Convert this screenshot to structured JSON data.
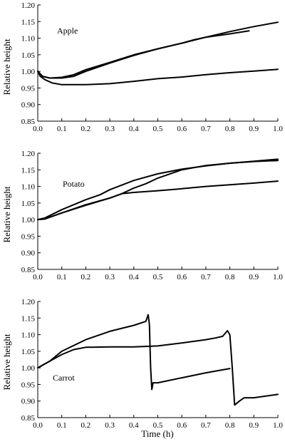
{
  "figure": {
    "xlabel": "Time (h)"
  },
  "chart_data": [
    {
      "type": "line",
      "panel_label": "Apple",
      "ylabel": "Relative height",
      "xlabel": "",
      "xlim": [
        0.0,
        1.0
      ],
      "ylim": [
        0.85,
        1.2
      ],
      "x_ticks": [
        "0.0",
        "0.1",
        "0.2",
        "0.3",
        "0.4",
        "0.5",
        "0.6",
        "0.7",
        "0.8",
        "0.9",
        "1.0"
      ],
      "y_ticks": [
        "0.85",
        "0.90",
        "0.95",
        "1.00",
        "1.05",
        "1.10",
        "1.15",
        "1.20"
      ],
      "grid": false,
      "series": [
        {
          "x": [
            0,
            0.02,
            0.05,
            0.1,
            0.15,
            0.2,
            0.3,
            0.4,
            0.5,
            0.6,
            0.7,
            0.8,
            0.9,
            1.0
          ],
          "y": [
            1.0,
            0.985,
            0.98,
            0.982,
            0.99,
            1.005,
            1.027,
            1.05,
            1.068,
            1.085,
            1.103,
            1.12,
            1.135,
            1.148
          ]
        },
        {
          "x": [
            0,
            0.02,
            0.05,
            0.1,
            0.15,
            0.2,
            0.3,
            0.4,
            0.5,
            0.6,
            0.65,
            0.7,
            0.8,
            0.88
          ],
          "y": [
            1.0,
            0.985,
            0.98,
            0.98,
            0.985,
            1.0,
            1.025,
            1.048,
            1.068,
            1.085,
            1.095,
            1.103,
            1.113,
            1.122
          ]
        },
        {
          "x": [
            0,
            0.01,
            0.03,
            0.06,
            0.1,
            0.15,
            0.2,
            0.3,
            0.4,
            0.5,
            0.6,
            0.7,
            0.8,
            0.9,
            1.0
          ],
          "y": [
            1.0,
            0.985,
            0.975,
            0.965,
            0.96,
            0.96,
            0.96,
            0.963,
            0.97,
            0.978,
            0.983,
            0.99,
            0.996,
            1.001,
            1.006
          ]
        }
      ]
    },
    {
      "type": "line",
      "panel_label": "Potato",
      "ylabel": "Relative height",
      "xlabel": "",
      "xlim": [
        0.0,
        1.0
      ],
      "ylim": [
        0.85,
        1.2
      ],
      "x_ticks": [
        "0.0",
        "0.1",
        "0.2",
        "0.3",
        "0.4",
        "0.5",
        "0.6",
        "0.7",
        "0.8",
        "0.9",
        "1.0"
      ],
      "y_ticks": [
        "0.85",
        "0.90",
        "0.95",
        "1.00",
        "1.05",
        "1.10",
        "1.15",
        "1.20"
      ],
      "grid": false,
      "series": [
        {
          "x": [
            0,
            0.03,
            0.1,
            0.2,
            0.26,
            0.3,
            0.4,
            0.5,
            0.6,
            0.7,
            0.8,
            0.9,
            1.0
          ],
          "y": [
            1.0,
            1.005,
            1.03,
            1.06,
            1.075,
            1.09,
            1.118,
            1.138,
            1.152,
            1.162,
            1.17,
            1.176,
            1.182
          ]
        },
        {
          "x": [
            0,
            0.03,
            0.1,
            0.2,
            0.3,
            0.35,
            0.4,
            0.45,
            0.5,
            0.6,
            0.7,
            0.8,
            0.9,
            1.0
          ],
          "y": [
            1.0,
            1.002,
            1.02,
            1.045,
            1.065,
            1.078,
            1.095,
            1.108,
            1.125,
            1.15,
            1.163,
            1.17,
            1.175,
            1.178
          ]
        },
        {
          "x": [
            0,
            0.03,
            0.1,
            0.2,
            0.3,
            0.35,
            0.4,
            0.5,
            0.6,
            0.7,
            0.8,
            0.9,
            1.0
          ],
          "y": [
            1.0,
            1.002,
            1.02,
            1.043,
            1.065,
            1.078,
            1.082,
            1.087,
            1.093,
            1.1,
            1.105,
            1.11,
            1.116
          ]
        }
      ]
    },
    {
      "type": "line",
      "panel_label": "Carrot",
      "ylabel": "Relative height",
      "xlabel": "Time (h)",
      "xlim": [
        0.0,
        1.0
      ],
      "ylim": [
        0.85,
        1.2
      ],
      "x_ticks": [
        "0.0",
        "0.1",
        "0.2",
        "0.3",
        "0.4",
        "0.5",
        "0.6",
        "0.7",
        "0.8",
        "0.9",
        "1.0"
      ],
      "y_ticks": [
        "0.85",
        "0.90",
        "0.95",
        "1.00",
        "1.05",
        "1.10",
        "1.15",
        "1.20"
      ],
      "grid": false,
      "series": [
        {
          "x": [
            0,
            0.05,
            0.1,
            0.2,
            0.3,
            0.4,
            0.45,
            0.46,
            0.465,
            0.47,
            0.475,
            0.48,
            0.5,
            0.6,
            0.7,
            0.8
          ],
          "y": [
            1.0,
            1.02,
            1.05,
            1.085,
            1.11,
            1.128,
            1.14,
            1.16,
            1.13,
            1.0,
            0.935,
            0.955,
            0.955,
            0.97,
            0.985,
            0.998
          ]
        },
        {
          "x": [
            0,
            0.05,
            0.1,
            0.15,
            0.2,
            0.3,
            0.4,
            0.5,
            0.6,
            0.7,
            0.74,
            0.77,
            0.79,
            0.8,
            0.81,
            0.82,
            0.84,
            0.86,
            0.9,
            1.0
          ],
          "y": [
            1.0,
            1.02,
            1.04,
            1.055,
            1.062,
            1.063,
            1.063,
            1.066,
            1.075,
            1.085,
            1.09,
            1.095,
            1.112,
            1.1,
            1.0,
            0.888,
            0.9,
            0.91,
            0.91,
            0.92
          ]
        }
      ]
    }
  ]
}
